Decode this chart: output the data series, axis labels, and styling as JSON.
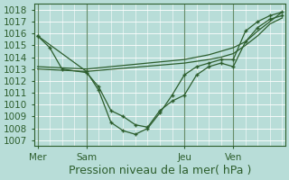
{
  "title": "Pression niveau de la mer( hPa )",
  "ylabel_ticks": [
    1007,
    1008,
    1009,
    1010,
    1011,
    1012,
    1013,
    1014,
    1015,
    1016,
    1017,
    1018
  ],
  "ylim": [
    1006.5,
    1018.5
  ],
  "day_labels": [
    "Mer",
    "Sam",
    "Jeu",
    "Ven"
  ],
  "day_positions": [
    0,
    16,
    48,
    64
  ],
  "total_points": 80,
  "background_color": "#b8ddd8",
  "grid_color": "#ffffff",
  "line_color": "#2d5e2d",
  "series1": {
    "x": [
      0,
      4,
      8,
      16,
      20,
      24,
      28,
      32,
      36,
      40,
      44,
      48,
      52,
      56,
      60,
      64,
      68,
      72,
      76,
      80
    ],
    "y": [
      1015.8,
      1014.8,
      1013.0,
      1012.7,
      1011.5,
      1009.5,
      1009.0,
      1008.3,
      1008.1,
      1009.5,
      1010.3,
      1010.8,
      1012.5,
      1013.2,
      1013.5,
      1013.2,
      1015.3,
      1016.5,
      1017.2,
      1017.5
    ]
  },
  "series2": {
    "x": [
      0,
      16,
      20,
      24,
      28,
      32,
      36,
      40,
      44,
      48,
      52,
      56,
      60,
      64,
      68,
      72,
      76,
      80
    ],
    "y": [
      1015.8,
      1012.8,
      1011.2,
      1008.5,
      1007.8,
      1007.5,
      1008.0,
      1009.3,
      1010.8,
      1012.5,
      1013.2,
      1013.5,
      1013.8,
      1013.8,
      1016.2,
      1017.0,
      1017.5,
      1017.8
    ]
  },
  "series3": {
    "x": [
      0,
      16,
      48,
      56,
      60,
      64,
      68,
      72,
      76,
      80
    ],
    "y": [
      1013.2,
      1013.0,
      1013.8,
      1014.2,
      1014.5,
      1014.8,
      1015.3,
      1016.2,
      1017.0,
      1017.8
    ]
  },
  "series4": {
    "x": [
      0,
      16,
      48,
      56,
      60,
      64,
      68,
      72,
      76,
      80
    ],
    "y": [
      1013.0,
      1012.8,
      1013.5,
      1013.8,
      1014.0,
      1014.3,
      1015.0,
      1015.8,
      1016.8,
      1017.3
    ]
  },
  "xlim": [
    -1,
    81
  ],
  "title_fontsize": 9,
  "tick_fontsize": 7.5
}
